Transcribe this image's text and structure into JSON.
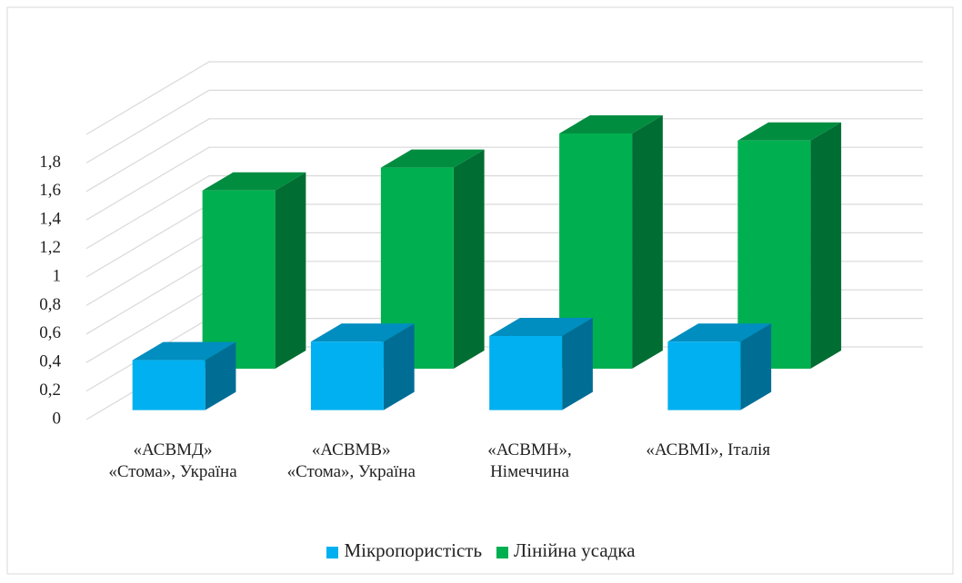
{
  "chart_data": {
    "type": "bar3d",
    "categories": [
      "«АСВМД»\n«Стома», Україна",
      "«АСВМВ»\n«Стома», Україна",
      "«АСВМН»,\nНімеччина",
      "«АСВМІ», Італія"
    ],
    "series": [
      {
        "name": "Мікропористість",
        "color": "#00b0f0",
        "values": [
          0.35,
          0.48,
          0.52,
          0.48
        ]
      },
      {
        "name": "Лінійна усадка",
        "color": "#00b050",
        "values": [
          1.25,
          1.41,
          1.65,
          1.6
        ]
      }
    ],
    "ylim": [
      0,
      2
    ],
    "yticks": [
      0,
      {
        "value": 0.2,
        "label": "0,2"
      },
      {
        "value": 0.4,
        "label": "0,4"
      },
      {
        "value": 0.6,
        "label": "0,6"
      },
      {
        "value": 0.8,
        "label": "0,8"
      },
      1,
      {
        "value": 1.2,
        "label": "1,2"
      },
      {
        "value": 1.4,
        "label": "1,4"
      },
      {
        "value": 1.6,
        "label": "1,6"
      },
      {
        "value": 1.8,
        "label": "1,8"
      }
    ],
    "grid": true
  }
}
